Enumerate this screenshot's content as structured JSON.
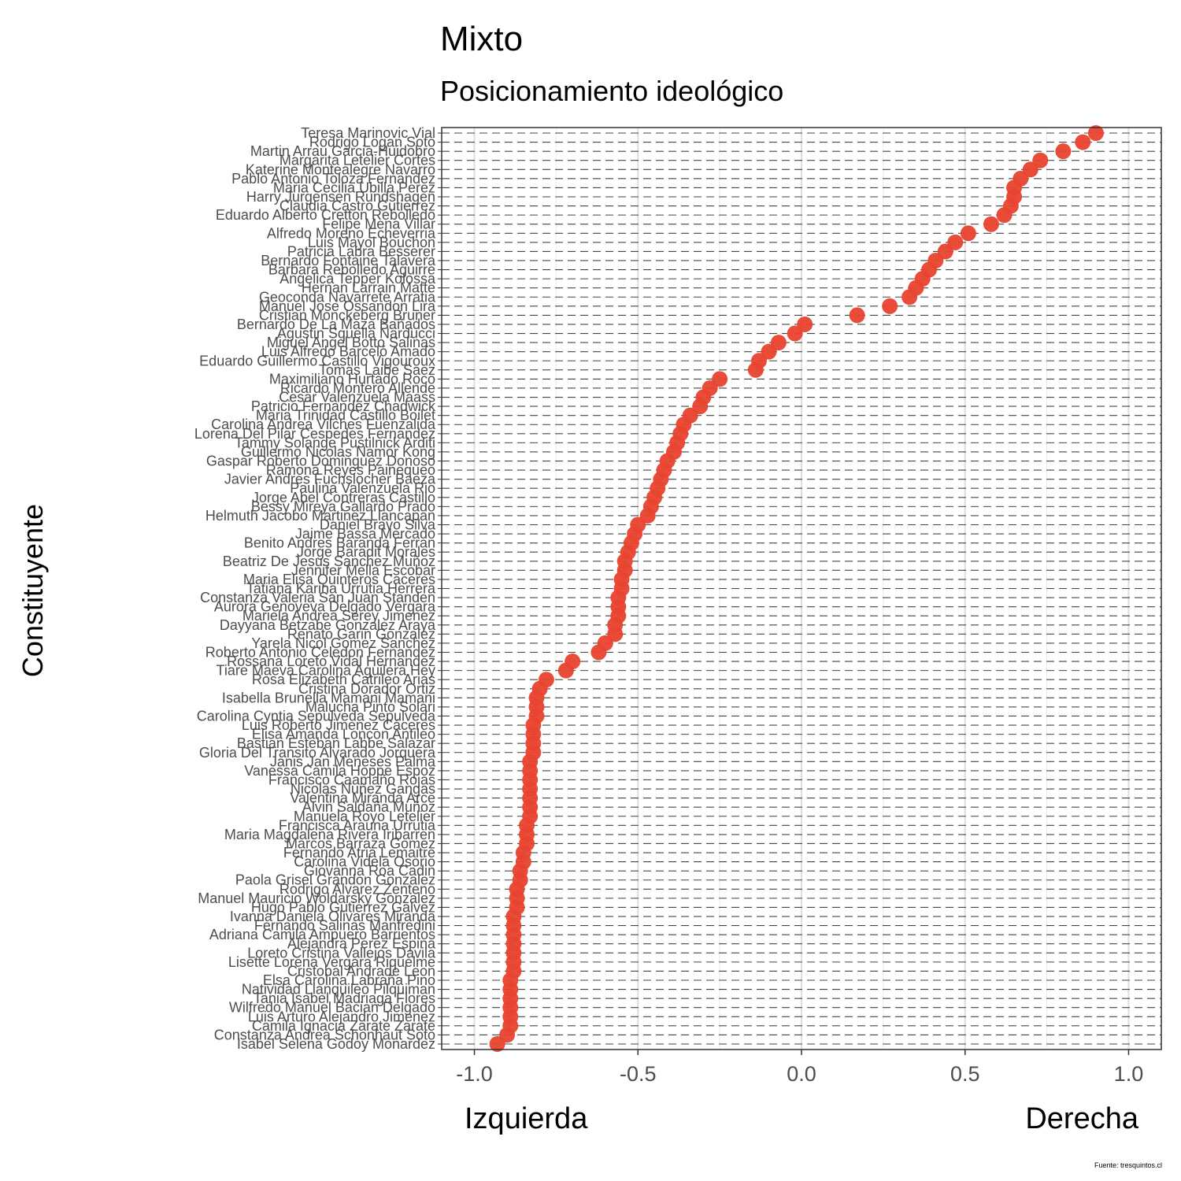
{
  "chart_data": {
    "type": "scatter",
    "title": "Mixto",
    "subtitle": "Posicionamiento ideológico",
    "ylabel": "Constituyente",
    "xlim": [
      -1.1,
      1.1
    ],
    "x_ticks": [
      -1.0,
      -0.5,
      0.0,
      0.5,
      1.0
    ],
    "x_tick_labels": [
      "-1.0",
      "-0.5",
      "0.0",
      "0.5",
      "1.0"
    ],
    "x_left_label": "Izquierda",
    "x_right_label": "Derecha",
    "caption": "Fuente: tresquintos.cl",
    "grid": true,
    "point_color": "#e8432e",
    "categories": [
      "Isabel Selena Godoy Monardez",
      "Constanza Andrea Schonhaut Soto",
      "Camila Ignacia Zarate Zarate",
      "Luis Arturo Alejandro Jimenez",
      "Wilfredo Manuel Bacian Delgado",
      "Tania Isabel Madriaga Flores",
      "Natividad Llanquileo Pilquiman",
      "Elsa Carolina Labraña Pino",
      "Cristobal Andrade Leon",
      "Lisette Lorena Vergara Riquelme",
      "Loreto Cristina Vallejos Davila",
      "Alejandra Perez Espina",
      "Adriana Camila Ampuero Barrientos",
      "Fernando Salinas Manfredini",
      "Ivanna Daniela Olivares Miranda",
      "Hugo Pablo Gutierrez Galvez",
      "Manuel Mauricio Woldarsky Gonzalez",
      "Rodrigo Alvarez Zenteno",
      "Paola Grisel Grandon Gonzalez",
      "Giovanna Roa Cadin",
      "Carolina Videla Osorio",
      "Fernando Atria Lemaitre",
      "Marcos Barraza Gomez",
      "Maria Magdalena Rivera Iribarren",
      "Francisca Arauna Urrutia",
      "Manuela Royo Letelier",
      "Alvin Saldaña Muñoz",
      "Valentina Miranda Arce",
      "Nicolas Nuñez Gangas",
      "Francisco Caamaño Rojas",
      "Vanessa Camila Hoppe Espoz",
      "Janis Jan Meneses Palma",
      "Gloria Del Transito Alvarado Jorquera",
      "Bastian Esteban Labbe Salazar",
      "Elisa Amanda Loncon Antileo",
      "Luis Roberto Jimenez Cáceres",
      "Carolina Cyntia Sepulveda Sepulveda",
      "Malucha Pinto Solari",
      "Isabella Brunella Mamani Mamani",
      "Cristina Dorador Ortiz",
      "Rosa Elizabeth Catrileo Arias",
      "Tiare Maeva Carolina Aguilera Hey",
      "Rossana Loreto Vidal Hernandez",
      "Roberto Antonio Celedon Fernandez",
      "Yarela Nicol Gomez Sanchez",
      "Renato Garin Gonzalez",
      "Dayyana Betzabe Gonzalez Araya",
      "Mariela Andrea Serey Jimenez",
      "Aurora Genoveva Delgado Vergara",
      "Constanza Valeria San Juan Standen",
      "Tatiana Karina Urrutia Herrera",
      "Maria Elisa Quinteros Caceres",
      "Jennifer Mella Escobar",
      "Beatriz De Jesus Sanchez Muñoz",
      "Jorge Baradit Morales",
      "Benito Andres Baranda Ferran",
      "Jaime Bassa Mercado",
      "Daniel Bravo Silva",
      "Helmuth Jacobo Martinez Llancapan",
      "Bessy Mireya Gallardo Prado",
      "Jorge Abel Contreras Castillo",
      "Paulina Valenzuela Rio",
      "Javier Andres Fuchslocher Baeza",
      "Ramona Reyes Painequeo",
      "Gaspar Roberto Dominguez Donoso",
      "Guillermo Nicolas Namor Kong",
      "Tammy Solange Pustilnick Arditi",
      "Lorena Del Pilar Cespedes Fernandez",
      "Carolina Andrea Vilches Fuenzalida",
      "Maria Trinidad Castillo Boilet",
      "Patricio Fernandez Chadwick",
      "Cesar Valenzuela Maass",
      "Ricardo Montero Allende",
      "Maximiliano Hurtado Roco",
      "Tomas Laibe Saez",
      "Eduardo Guillermo Castillo Vigouroux",
      "Luis Alfredo Barceló Amado",
      "Miguel Angel Botto Salinas",
      "Agustin Squella Narducci",
      "Bernardo De La Maza Bañados",
      "Cristian Monckeberg Bruner",
      "Manuel Jose Ossandon Lira",
      "Geoconda Navarrete Arratia",
      "Hernan Larrain Matte",
      "Angelica Tepper Kolossa",
      "Barbara Rebolledo Aguirre",
      "Bernardo Fontaine Talavera",
      "Patricia Labra Besserer",
      "Luis Mayol Bouchon",
      "Alfredo Moreno Echeverria",
      "Felipe Mena Villar",
      "Eduardo Alberto Cretton Rebolledo",
      "Claudia Castro Gutierrez",
      "Harry Jurgensen Rundshagen",
      "Maria Cecilia Ubilla Perez",
      "Pablo Antonio Toloza Fernandez",
      "Katerine Montealegre Navarro",
      "Margarita Letelier Cortes",
      "Martin Arrau Garcia-Huidobro",
      "Rodrigo Logan Soto",
      "Teresa Marinovic Vial"
    ],
    "values": [
      -0.93,
      -0.9,
      -0.89,
      -0.89,
      -0.89,
      -0.89,
      -0.89,
      -0.89,
      -0.88,
      -0.88,
      -0.88,
      -0.88,
      -0.88,
      -0.88,
      -0.88,
      -0.87,
      -0.87,
      -0.87,
      -0.86,
      -0.86,
      -0.85,
      -0.85,
      -0.84,
      -0.84,
      -0.84,
      -0.83,
      -0.83,
      -0.83,
      -0.83,
      -0.83,
      -0.83,
      -0.83,
      -0.82,
      -0.82,
      -0.82,
      -0.82,
      -0.81,
      -0.81,
      -0.81,
      -0.8,
      -0.78,
      -0.72,
      -0.7,
      -0.62,
      -0.6,
      -0.57,
      -0.57,
      -0.56,
      -0.56,
      -0.56,
      -0.55,
      -0.55,
      -0.54,
      -0.54,
      -0.53,
      -0.52,
      -0.51,
      -0.5,
      -0.47,
      -0.46,
      -0.45,
      -0.44,
      -0.43,
      -0.42,
      -0.41,
      -0.39,
      -0.38,
      -0.37,
      -0.36,
      -0.34,
      -0.31,
      -0.3,
      -0.28,
      -0.25,
      -0.14,
      -0.13,
      -0.1,
      -0.07,
      -0.02,
      0.01,
      0.17,
      0.27,
      0.33,
      0.35,
      0.37,
      0.39,
      0.41,
      0.44,
      0.47,
      0.51,
      0.58,
      0.62,
      0.64,
      0.65,
      0.65,
      0.67,
      0.7,
      0.73,
      0.8,
      0.86,
      0.9
    ]
  }
}
